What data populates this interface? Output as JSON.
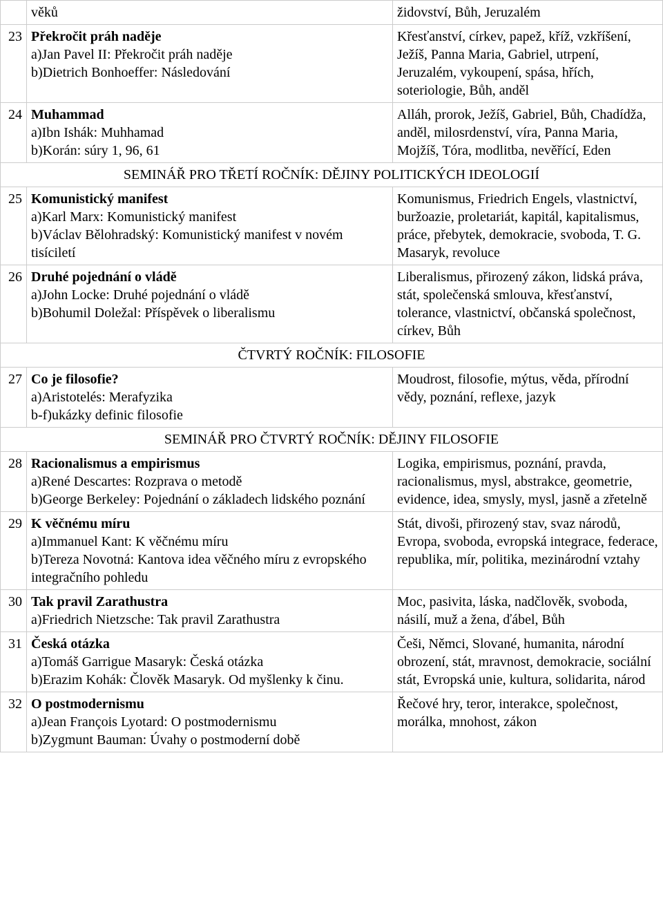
{
  "rows": [
    {
      "type": "data",
      "num": "",
      "title": "",
      "subs": [
        "věků"
      ],
      "right": "židovství, Bůh, Jeruzalém"
    },
    {
      "type": "data",
      "num": "23",
      "title": "Překročit práh naděje",
      "subs": [
        "a)Jan Pavel II: Překročit práh naděje",
        "b)Dietrich Bonhoeffer: Následování"
      ],
      "right": "Křesťanství, církev, papež, kříž, vzkříšení, Ježíš, Panna Maria, Gabriel, utrpení, Jeruzalém, vykoupení, spása, hřích, soteriologie, Bůh, anděl"
    },
    {
      "type": "data",
      "num": "24",
      "title": "Muhammad",
      "subs": [
        "a)Ibn Ishák: Muhhamad",
        "b)Korán: súry 1, 96, 61"
      ],
      "right": "Alláh, prorok, Ježíš, Gabriel, Bůh, Chadídža, anděl, milosrdenství, víra, Panna Maria, Mojžíš, Tóra, modlitba, nevěřící, Eden"
    },
    {
      "type": "section",
      "text": "SEMINÁŘ PRO TŘETÍ ROČNÍK: DĚJINY POLITICKÝCH IDEOLOGIÍ"
    },
    {
      "type": "data",
      "num": "25",
      "title": "Komunistický manifest",
      "subs": [
        "a)Karl Marx: Komunistický manifest",
        "b)Václav Bělohradský: Komunistický manifest v novém tisíciletí"
      ],
      "right": "Komunismus, Friedrich Engels, vlastnictví, buržoazie, proletariát, kapitál, kapitalismus, práce, přebytek, demokracie, svoboda, T. G. Masaryk, revoluce"
    },
    {
      "type": "data",
      "num": "26",
      "title": "Druhé pojednání o vládě",
      "subs": [
        "a)John Locke: Druhé pojednání o vládě",
        "b)Bohumil Doležal: Příspěvek o liberalismu"
      ],
      "right": "Liberalismus, přirozený zákon, lidská práva, stát, společenská smlouva, křesťanství, tolerance, vlastnictví, občanská společnost, církev, Bůh"
    },
    {
      "type": "section",
      "text": "ČTVRTÝ ROČNÍK: FILOSOFIE"
    },
    {
      "type": "data",
      "num": "27",
      "title": "Co je filosofie?",
      "subs": [
        "a)Aristotelés: Merafyzika",
        "b-f)ukázky definic filosofie"
      ],
      "right": "Moudrost, filosofie, mýtus, věda, přírodní vědy, poznání, reflexe, jazyk"
    },
    {
      "type": "section",
      "text": "SEMINÁŘ PRO ČTVRTÝ ROČNÍK: DĚJINY FILOSOFIE"
    },
    {
      "type": "data",
      "num": "28",
      "title": "Racionalismus a empirismus",
      "subs": [
        "a)René Descartes: Rozprava o metodě",
        "b)George Berkeley: Pojednání o základech lidského poznání"
      ],
      "right": "Logika, empirismus, poznání, pravda, racionalismus, mysl, abstrakce, geometrie, evidence, idea, smysly, mysl, jasně a zřetelně"
    },
    {
      "type": "data",
      "num": "29",
      "title": "K věčnému míru",
      "subs": [
        "a)Immanuel Kant: K věčnému míru",
        "b)Tereza Novotná: Kantova idea věčného míru z evropského integračního pohledu"
      ],
      "right": "Stát, divoši, přirozený stav, svaz národů, Evropa, svoboda, evropská integrace, federace, republika, mír, politika, mezinárodní vztahy"
    },
    {
      "type": "data",
      "num": "30",
      "title": "Tak pravil Zarathustra",
      "subs": [
        "a)Friedrich Nietzsche: Tak pravil Zarathustra"
      ],
      "right": "Moc, pasivita, láska, nadčlověk, svoboda, násilí, muž a žena, ďábel, Bůh"
    },
    {
      "type": "data",
      "num": "31",
      "title": "Česká otázka",
      "subs": [
        "a)Tomáš Garrigue Masaryk: Česká otázka",
        "b)Erazim Kohák: Člověk Masaryk. Od myšlenky k činu."
      ],
      "right": "Češi, Němci, Slované, humanita, národní obrození, stát, mravnost, demokracie, sociální stát, Evropská unie, kultura, solidarita, národ"
    },
    {
      "type": "data",
      "num": "32",
      "title": "O postmodernismu",
      "subs": [
        "a)Jean François Lyotard: O postmodernismu",
        "b)Zygmunt Bauman: Úvahy o postmoderní době"
      ],
      "right": "Řečové hry, teror, interakce, společnost, morálka, mnohost, zákon"
    }
  ]
}
